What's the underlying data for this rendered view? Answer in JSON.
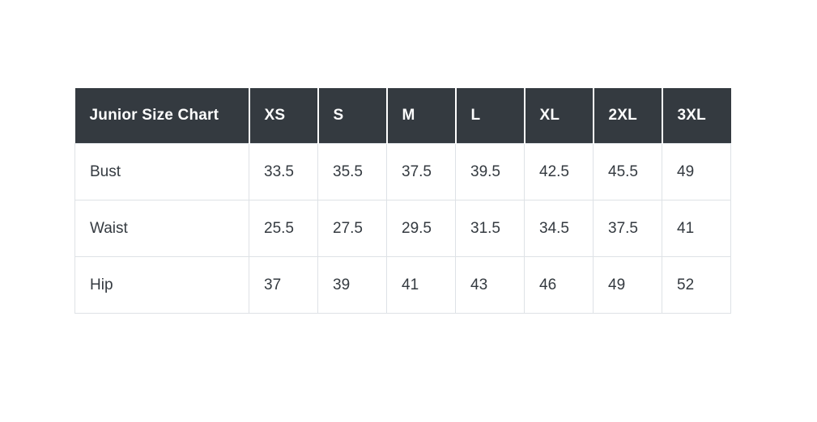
{
  "chart_data": {
    "type": "table",
    "title": "Junior Size Chart",
    "columns": [
      "XS",
      "S",
      "M",
      "L",
      "XL",
      "2XL",
      "3XL"
    ],
    "rows": [
      {
        "label": "Bust",
        "values": [
          33.5,
          35.5,
          37.5,
          39.5,
          42.5,
          45.5,
          49
        ]
      },
      {
        "label": "Waist",
        "values": [
          25.5,
          27.5,
          29.5,
          31.5,
          34.5,
          37.5,
          41
        ]
      },
      {
        "label": "Hip",
        "values": [
          37,
          39,
          41,
          43,
          46,
          49,
          52
        ]
      }
    ]
  },
  "colors": {
    "header_bg": "#343a40",
    "header_text": "#ffffff",
    "header_divider": "#ffffff",
    "body_border": "#dee2e6",
    "body_text": "#343a40",
    "page_bg": "#ffffff"
  }
}
